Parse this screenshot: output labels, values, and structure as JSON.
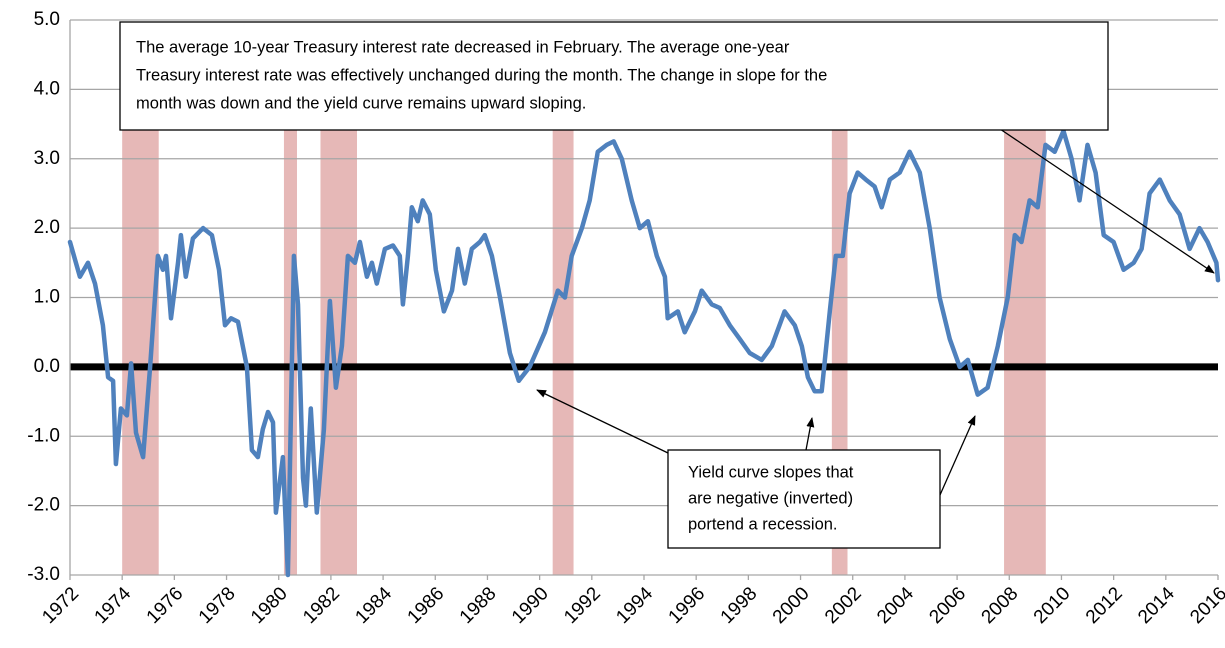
{
  "chart_data": {
    "type": "line",
    "xlim": [
      1972,
      2016
    ],
    "xticks": [
      1972,
      1974,
      1976,
      1978,
      1980,
      1982,
      1984,
      1986,
      1988,
      1990,
      1992,
      1994,
      1996,
      1998,
      2000,
      2002,
      2004,
      2006,
      2008,
      2010,
      2012,
      2014,
      2016
    ],
    "ylim": [
      -3,
      5
    ],
    "yticks": [
      {
        "value": -3,
        "label": "-3.0"
      },
      {
        "value": -2,
        "label": "-2.0"
      },
      {
        "value": -1,
        "label": "-1.0"
      },
      {
        "value": 0,
        "label": "0.0"
      },
      {
        "value": 1,
        "label": "1.0"
      },
      {
        "value": 2,
        "label": "2.0"
      },
      {
        "value": 3,
        "label": "3.0"
      },
      {
        "value": 4,
        "label": "4.0"
      },
      {
        "value": 5,
        "label": "5.0"
      }
    ],
    "grid": true,
    "recession_color": "#e6b8b7",
    "recessions": [
      [
        1974.0,
        1975.4
      ],
      [
        1980.2,
        1980.7
      ],
      [
        1981.6,
        1983.0
      ],
      [
        1990.5,
        1991.3
      ],
      [
        2001.2,
        2001.8
      ],
      [
        2007.8,
        2009.4
      ]
    ],
    "x": [
      1972.0,
      1972.38,
      1972.69,
      1972.96,
      1973.26,
      1973.46,
      1973.65,
      1973.76,
      1973.95,
      1974.18,
      1974.34,
      1974.53,
      1974.8,
      1975.07,
      1975.37,
      1975.56,
      1975.68,
      1975.87,
      1976.14,
      1976.25,
      1976.44,
      1976.71,
      1977.1,
      1977.44,
      1977.71,
      1977.94,
      1978.17,
      1978.44,
      1978.78,
      1978.97,
      1979.2,
      1979.39,
      1979.59,
      1979.78,
      1979.89,
      1980.16,
      1980.35,
      1980.58,
      1980.74,
      1980.93,
      1981.04,
      1981.23,
      1981.46,
      1981.73,
      1981.96,
      1982.19,
      1982.42,
      1982.65,
      1982.92,
      1983.11,
      1983.38,
      1983.57,
      1983.76,
      1984.07,
      1984.38,
      1984.64,
      1984.76,
      1984.95,
      1985.1,
      1985.33,
      1985.52,
      1985.79,
      1986.02,
      1986.33,
      1986.64,
      1986.87,
      1987.13,
      1987.4,
      1987.71,
      1987.9,
      1988.17,
      1988.48,
      1988.86,
      1989.2,
      1989.62,
      1990.2,
      1990.7,
      1990.97,
      1991.23,
      1991.62,
      1991.92,
      1992.23,
      1992.57,
      1992.84,
      1993.15,
      1993.53,
      1993.84,
      1994.15,
      1994.49,
      1994.8,
      1994.91,
      1995.3,
      1995.56,
      1995.95,
      1996.21,
      1996.6,
      1996.9,
      1997.29,
      1997.67,
      1998.05,
      1998.51,
      1998.9,
      1999.39,
      1999.78,
      2000.05,
      2000.28,
      2000.54,
      2000.81,
      2001.12,
      2001.35,
      2001.62,
      2001.88,
      2002.19,
      2002.5,
      2002.84,
      2003.11,
      2003.42,
      2003.8,
      2004.18,
      2004.57,
      2004.95,
      2005.33,
      2005.72,
      2006.1,
      2006.41,
      2006.79,
      2007.17,
      2007.56,
      2007.94,
      2008.21,
      2008.47,
      2008.78,
      2009.09,
      2009.39,
      2009.74,
      2010.08,
      2010.39,
      2010.69,
      2011.0,
      2011.31,
      2011.62,
      2012.0,
      2012.38,
      2012.77,
      2013.07,
      2013.38,
      2013.77,
      2014.15,
      2014.53,
      2014.91,
      2015.29,
      2015.6,
      2015.94,
      2016.0
    ],
    "series": [
      {
        "color": "#4f81bd",
        "values": [
          1.8,
          1.3,
          1.5,
          1.2,
          0.6,
          -0.15,
          -0.2,
          -1.4,
          -0.6,
          -0.7,
          0.05,
          -0.95,
          -1.3,
          0.0,
          1.6,
          1.4,
          1.6,
          0.7,
          1.5,
          1.9,
          1.3,
          1.85,
          2.0,
          1.9,
          1.4,
          0.6,
          0.7,
          0.65,
          0.0,
          -1.2,
          -1.3,
          -0.9,
          -0.65,
          -0.8,
          -2.1,
          -1.3,
          -3.0,
          1.6,
          0.9,
          -1.6,
          -2.0,
          -0.6,
          -2.1,
          -0.9,
          0.95,
          -0.3,
          0.3,
          1.6,
          1.5,
          1.8,
          1.3,
          1.5,
          1.2,
          1.7,
          1.75,
          1.6,
          0.9,
          1.6,
          2.3,
          2.1,
          2.4,
          2.2,
          1.4,
          0.8,
          1.1,
          1.7,
          1.2,
          1.7,
          1.8,
          1.9,
          1.6,
          1.0,
          0.2,
          -0.2,
          0.0,
          0.5,
          1.1,
          1.0,
          1.6,
          2.0,
          2.4,
          3.1,
          3.2,
          3.25,
          3.0,
          2.4,
          2.0,
          2.1,
          1.6,
          1.3,
          0.7,
          0.8,
          0.5,
          0.8,
          1.1,
          0.9,
          0.85,
          0.6,
          0.4,
          0.2,
          0.1,
          0.3,
          0.8,
          0.6,
          0.3,
          -0.15,
          -0.35,
          -0.35,
          0.8,
          1.6,
          1.6,
          2.5,
          2.8,
          2.7,
          2.6,
          2.3,
          2.7,
          2.8,
          3.1,
          2.8,
          2.0,
          1.0,
          0.4,
          0.0,
          0.1,
          -0.4,
          -0.3,
          0.3,
          1.0,
          1.9,
          1.8,
          2.4,
          2.3,
          3.2,
          3.1,
          3.4,
          3.0,
          2.4,
          3.2,
          2.8,
          1.9,
          1.8,
          1.4,
          1.5,
          1.7,
          2.5,
          2.7,
          2.4,
          2.2,
          1.7,
          2.0,
          1.8,
          1.5,
          1.25
        ]
      }
    ],
    "annotations": [
      {
        "lines": [
          "The average 10-year Treasury interest rate decreased in February.  The average  one-year",
          "Treasury interest rate was effectively unchanged during the month.  The change in slope for the",
          "month was down and the yield curve remains upward sloping."
        ]
      },
      {
        "lines": [
          "Yield curve slopes that",
          "are negative (inverted)",
          "portend a recession."
        ]
      }
    ]
  }
}
